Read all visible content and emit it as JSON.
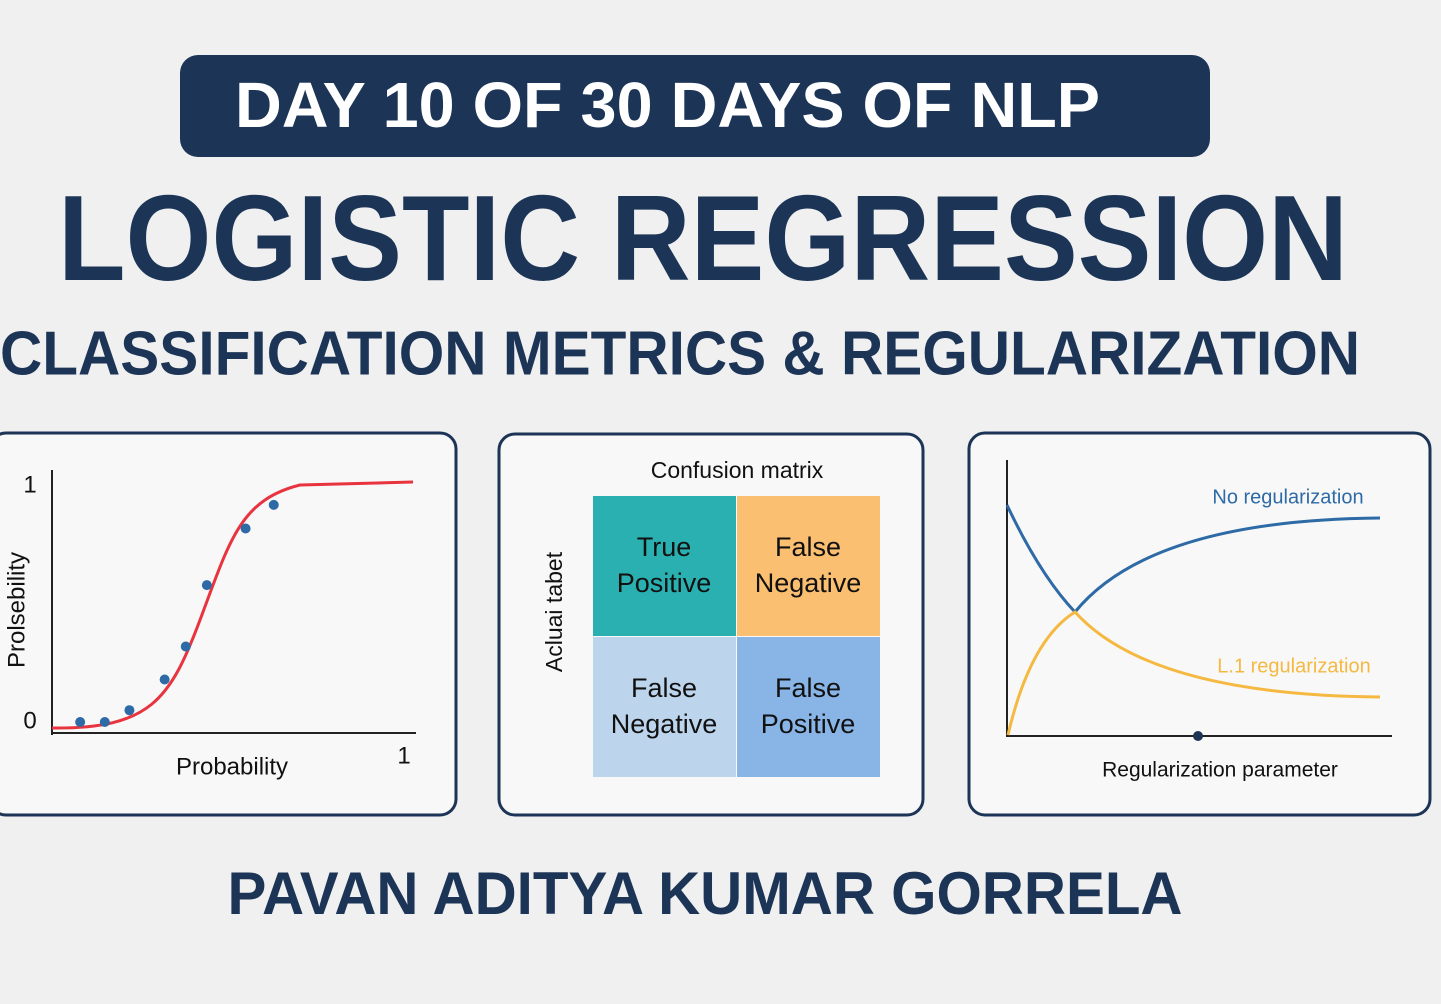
{
  "banner": "DAY 10 OF 30 DAYS OF NLP",
  "title": "LOGISTIC REGRESSION",
  "subtitle": "CLASSIFICATION METRICS & REGULARIZATION",
  "sigmoid_panel": {
    "ylabel": "Prolsebility",
    "xlabel": "Probability",
    "xlim": [
      0,
      1
    ],
    "ylim": [
      0,
      1
    ],
    "xticks": [
      1
    ],
    "yticks": [
      0,
      1
    ],
    "point_color": "#2d6aa6",
    "curve_color": "#e8343f",
    "points": {
      "x": [
        0.08,
        0.15,
        0.22,
        0.32,
        0.38,
        0.44,
        0.55,
        0.63
      ],
      "y": [
        0,
        0,
        0.05,
        0.18,
        0.32,
        0.58,
        0.82,
        0.92
      ]
    }
  },
  "confusion_panel": {
    "title": "Confusion matrix",
    "ylabel": "Acluai tabet",
    "cells": [
      {
        "lines": [
          "True",
          "Positive"
        ],
        "color": "#2ab0b0"
      },
      {
        "lines": [
          "False",
          "Negative"
        ],
        "color": "#fbbf72"
      },
      {
        "lines": [
          "False",
          "Negative"
        ],
        "color": "#bcd5ec"
      },
      {
        "lines": [
          "False",
          "Positive"
        ],
        "color": "#88b4e6"
      }
    ]
  },
  "regularization_panel": {
    "xlabel": "Regularization parameter",
    "curves": [
      {
        "name": "No regularization",
        "color": "#2d6aa6"
      },
      {
        "name": "L.1 regularization",
        "color": "#f5b942"
      }
    ]
  },
  "author": "PAVAN ADITYA KUMAR GORRELA"
}
